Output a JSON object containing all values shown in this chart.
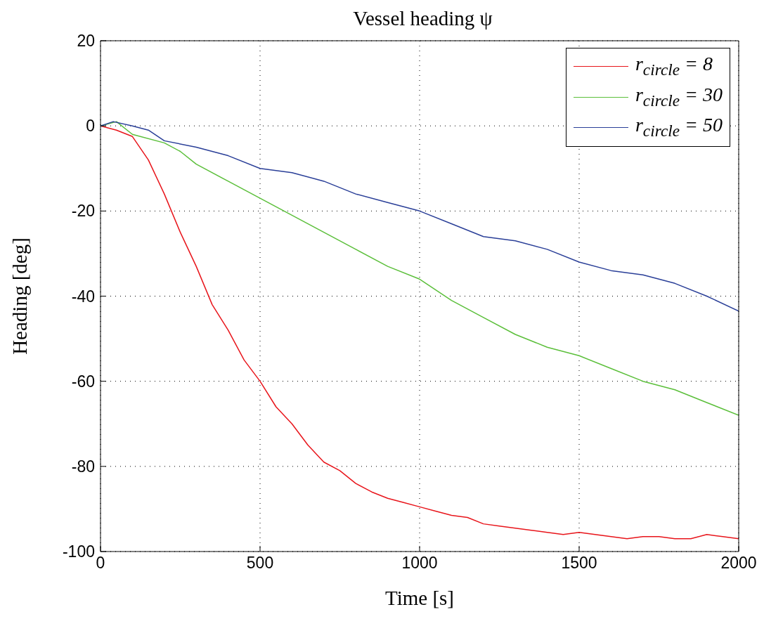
{
  "chart_data": {
    "type": "line",
    "title": "Vessel heading ψ",
    "xlabel": "Time [s]",
    "ylabel": "Heading [deg]",
    "xlim": [
      0,
      2000
    ],
    "xticks": [
      0,
      500,
      1000,
      1500,
      2000
    ],
    "ylim": [
      -100,
      20
    ],
    "yticks": [
      -100,
      -80,
      -60,
      -40,
      -20,
      0,
      20
    ],
    "grid": true,
    "legend": "top right",
    "series": [
      {
        "name": "r$_{circle}$ = 8",
        "color": "#e8151b",
        "x": [
          0,
          50,
          100,
          150,
          200,
          250,
          300,
          350,
          400,
          450,
          500,
          550,
          600,
          650,
          700,
          750,
          800,
          850,
          900,
          950,
          1000,
          1050,
          1100,
          1150,
          1200,
          1250,
          1300,
          1350,
          1400,
          1450,
          1500,
          1550,
          1600,
          1650,
          1700,
          1750,
          1800,
          1850,
          1900,
          1950,
          2000
        ],
        "values": [
          0,
          -1,
          -2.5,
          -8,
          -16,
          -25,
          -33,
          -42,
          -48,
          -55,
          -60,
          -66,
          -70,
          -75,
          -79,
          -81,
          -84,
          -86,
          -87.5,
          -88.5,
          -89.5,
          -90.5,
          -91.5,
          -92,
          -93.5,
          -94,
          -94.5,
          -95,
          -95.5,
          -96,
          -95.5,
          -96,
          -96.5,
          -97,
          -96.5,
          -96.5,
          -97,
          -97,
          -96,
          -96.5,
          -97
        ]
      },
      {
        "name": "r$_{circle}$ = 30",
        "color": "#5bbf3a",
        "x": [
          0,
          50,
          100,
          200,
          250,
          300,
          400,
          500,
          600,
          700,
          800,
          900,
          1000,
          1100,
          1200,
          1300,
          1400,
          1500,
          1600,
          1700,
          1800,
          1900,
          2000
        ],
        "values": [
          0,
          1,
          -2,
          -4,
          -6,
          -9,
          -13,
          -17,
          -21,
          -25,
          -29,
          -33,
          -36,
          -41,
          -45,
          -49,
          -52,
          -54,
          -57,
          -60,
          -62,
          -65,
          -68
        ]
      },
      {
        "name": "r$_{circle}$ = 50",
        "color": "#2a3f98",
        "x": [
          0,
          40,
          100,
          150,
          200,
          300,
          400,
          500,
          600,
          700,
          800,
          900,
          1000,
          1100,
          1200,
          1300,
          1400,
          1500,
          1600,
          1700,
          1800,
          1900,
          2000
        ],
        "values": [
          0,
          1,
          0,
          -1,
          -3.5,
          -5,
          -7,
          -10,
          -11,
          -13,
          -16,
          -18,
          -20,
          -23,
          -26,
          -27,
          -29,
          -32,
          -34,
          -35,
          -37,
          -40,
          -43.5
        ]
      }
    ]
  }
}
